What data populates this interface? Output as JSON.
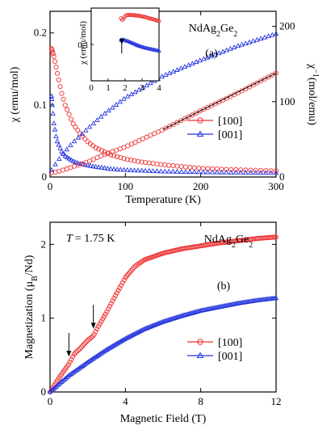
{
  "colors": {
    "red": "#ee3333",
    "blue": "#2233dd",
    "axis": "#000000"
  },
  "chart_data": [
    {
      "type": "scatter",
      "panel_label": "(a)",
      "compound": "NdAg",
      "compound_sub1": "2",
      "compound_mid": "Ge",
      "compound_sub2": "2",
      "xlabel": "Temperature (K)",
      "ylabel_left": "χ (emu/mol)",
      "ylabel_right_main": "χ",
      "ylabel_right_sup": "−1",
      "ylabel_right_unit": "(mol/emu)",
      "xlim": [
        0,
        300
      ],
      "ylim_left": [
        0,
        0.23
      ],
      "ylim_right": [
        0,
        220
      ],
      "xticks": [
        "0",
        "100",
        "200",
        "300"
      ],
      "yticks_left": [
        "0",
        "0.1",
        "0.2"
      ],
      "yticks_right": [
        "0",
        "100",
        "200"
      ],
      "legend": [
        "[100]",
        "[001]"
      ],
      "series": [
        {
          "name": "[100]",
          "quantity": "χ",
          "axis": "left",
          "x": [
            2,
            5,
            10,
            15,
            20,
            30,
            40,
            50,
            60,
            80,
            100,
            120,
            150,
            200,
            250,
            300
          ],
          "y": [
            0.178,
            0.168,
            0.142,
            0.118,
            0.1,
            0.075,
            0.06,
            0.049,
            0.041,
            0.031,
            0.025,
            0.021,
            0.017,
            0.012,
            0.01,
            0.0085
          ]
        },
        {
          "name": "[001]",
          "quantity": "χ",
          "axis": "left",
          "x": [
            2,
            3,
            5,
            8,
            10,
            15,
            20,
            30,
            40,
            50,
            60,
            80,
            100,
            150,
            200,
            250,
            300
          ],
          "y": [
            0.112,
            0.1,
            0.075,
            0.056,
            0.048,
            0.036,
            0.029,
            0.022,
            0.018,
            0.016,
            0.014,
            0.011,
            0.0095,
            0.0075,
            0.0065,
            0.006,
            0.0055
          ]
        },
        {
          "name": "[100]",
          "quantity": "χ^-1",
          "axis": "right",
          "x": [
            2,
            10,
            20,
            30,
            50,
            70,
            100,
            150,
            200,
            250,
            300
          ],
          "y": [
            5.6,
            7,
            10,
            13.5,
            20,
            29,
            40,
            63,
            88,
            112,
            138
          ]
        },
        {
          "name": "[001]",
          "quantity": "χ^-1",
          "axis": "right",
          "x": [
            2,
            10,
            20,
            30,
            50,
            70,
            100,
            150,
            200,
            250,
            300
          ],
          "y": [
            9,
            21,
            34,
            45,
            64,
            82,
            105,
            134,
            155,
            174,
            190
          ]
        }
      ],
      "fit_line": {
        "axis": "right",
        "x": [
          150,
          300
        ],
        "y": [
          63,
          138
        ]
      }
    },
    {
      "type": "scatter",
      "panel_label": "inset",
      "xlim": [
        0,
        4
      ],
      "ylim": [
        0,
        0.2
      ],
      "xticks": [
        "0",
        "1",
        "2",
        "3",
        "4"
      ],
      "yticks": [
        "0.1"
      ],
      "ylabel": "χ (emu/mol)",
      "arrow_x": 1.8,
      "series": [
        {
          "name": "[100]",
          "x": [
            1.75,
            1.85,
            1.95,
            2.05,
            2.2,
            2.4,
            2.6,
            2.8,
            3.0,
            3.2,
            3.4,
            3.6,
            3.8,
            4.0
          ],
          "y": [
            0.172,
            0.166,
            0.174,
            0.18,
            0.181,
            0.181,
            0.18,
            0.179,
            0.177,
            0.175,
            0.172,
            0.17,
            0.167,
            0.164
          ]
        },
        {
          "name": "[001]",
          "x": [
            1.75,
            1.85,
            1.95,
            2.05,
            2.2,
            2.4,
            2.6,
            2.8,
            3.0,
            3.2,
            3.4,
            3.6,
            3.8,
            4.0
          ],
          "y": [
            0.112,
            0.113,
            0.112,
            0.11,
            0.108,
            0.104,
            0.1,
            0.096,
            0.093,
            0.09,
            0.088,
            0.086,
            0.084,
            0.082
          ]
        }
      ]
    },
    {
      "type": "line",
      "panel_label": "(b)",
      "compound": "NdAg",
      "compound_sub1": "2",
      "compound_mid": "Ge",
      "compound_sub2": "2",
      "temperature_label": "T",
      "temperature_value": "= 1.75 K",
      "xlabel": "Magnetic Field (T)",
      "ylabel_main": "Magnetization (μ",
      "ylabel_sub": "B",
      "ylabel_tail": "/Nd)",
      "xlim": [
        0,
        12
      ],
      "ylim": [
        0,
        2.3
      ],
      "xticks": [
        "0",
        "4",
        "8",
        "12"
      ],
      "yticks": [
        "0",
        "1",
        "2"
      ],
      "legend": [
        "[100]",
        "[001]"
      ],
      "arrows_x": [
        1.0,
        2.3
      ],
      "series": [
        {
          "name": "[100]",
          "x": [
            0,
            0.5,
            1.0,
            1.3,
            1.6,
            2.0,
            2.3,
            2.5,
            3.0,
            3.5,
            4.0,
            4.5,
            5.0,
            6.0,
            7.0,
            8.0,
            9.0,
            10.0,
            11.0,
            12.0
          ],
          "y": [
            0,
            0.2,
            0.38,
            0.52,
            0.59,
            0.7,
            0.76,
            0.86,
            1.08,
            1.32,
            1.55,
            1.7,
            1.79,
            1.88,
            1.94,
            1.98,
            2.02,
            2.05,
            2.08,
            2.1
          ]
        },
        {
          "name": "[001]",
          "x": [
            0,
            1,
            2,
            3,
            4,
            5,
            6,
            7,
            8,
            9,
            10,
            11,
            12
          ],
          "y": [
            0,
            0.22,
            0.4,
            0.57,
            0.72,
            0.85,
            0.95,
            1.03,
            1.1,
            1.15,
            1.2,
            1.24,
            1.27
          ]
        }
      ]
    }
  ]
}
